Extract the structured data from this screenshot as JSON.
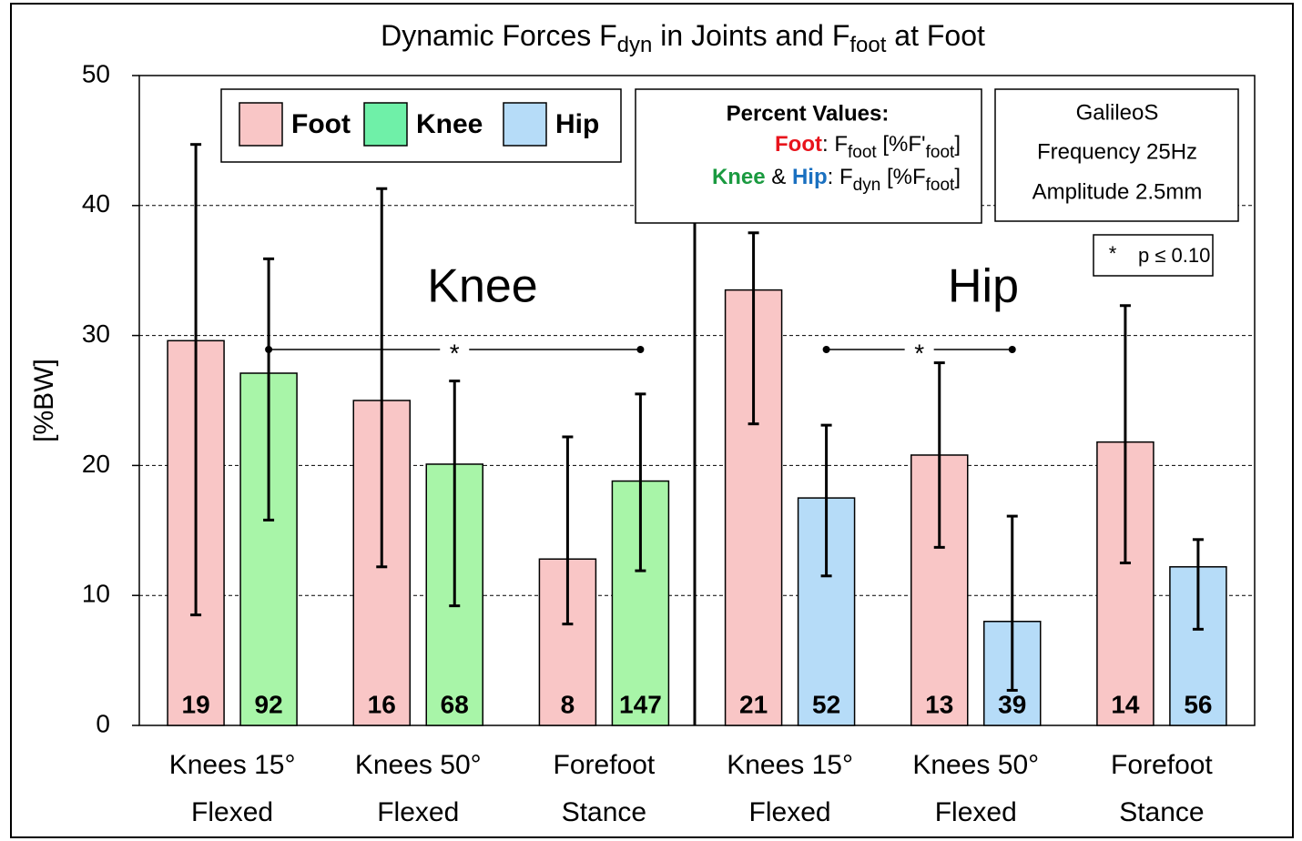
{
  "chart_data": {
    "type": "bar",
    "title": [
      "Dynamic Forces F",
      "dyn",
      " in Joints and F",
      "foot",
      " at Foot"
    ],
    "y_label": "[%BW]",
    "ylim": [
      0,
      50
    ],
    "yticks": [
      0,
      10,
      20,
      30,
      40,
      50
    ],
    "grid": true,
    "categories": [
      [
        "Knees 15°",
        "Flexed"
      ],
      [
        "Knees 50°",
        "Flexed"
      ],
      [
        "Forefoot",
        "Stance"
      ],
      [
        "Knees 15°",
        "Flexed"
      ],
      [
        "Knees 50°",
        "Flexed"
      ],
      [
        "Forefoot",
        "Stance"
      ]
    ],
    "sections": [
      "Knee",
      "Hip"
    ],
    "series": [
      {
        "name": "Foot",
        "color": "#f9c6c6",
        "label_color": "#e8141c",
        "values": [
          29.6,
          25.0,
          12.8,
          33.5,
          20.8,
          21.8
        ],
        "error_low": [
          8.5,
          12.2,
          7.8,
          23.2,
          13.7,
          12.5
        ],
        "error_high": [
          44.7,
          41.3,
          22.2,
          37.9,
          27.9,
          32.3
        ],
        "percent_labels": [
          19,
          16,
          8,
          21,
          13,
          14
        ]
      },
      {
        "name": "Knee",
        "color": "#a8f5a8",
        "legend_color": "#6ff0a8",
        "label_color": "#1a9a40",
        "values": [
          27.1,
          20.1,
          18.8,
          null,
          null,
          null
        ],
        "error_low": [
          15.8,
          9.2,
          11.9,
          null,
          null,
          null
        ],
        "error_high": [
          35.9,
          26.5,
          25.5,
          null,
          null,
          null
        ],
        "percent_labels": [
          92,
          68,
          147,
          null,
          null,
          null
        ]
      },
      {
        "name": "Hip",
        "color": "#b6dcf8",
        "legend_color": "#b6dcf8",
        "label_color": "#1a70c0",
        "values": [
          null,
          null,
          null,
          17.5,
          8.0,
          12.2
        ],
        "error_low": [
          null,
          null,
          null,
          11.5,
          2.7,
          7.4
        ],
        "error_high": [
          null,
          null,
          null,
          23.1,
          16.1,
          14.3
        ],
        "percent_labels": [
          null,
          null,
          null,
          52,
          39,
          56
        ]
      }
    ],
    "significance": [
      {
        "series": 1,
        "from": 0,
        "to": 2,
        "label": "*"
      },
      {
        "series": 2,
        "from": 3,
        "to": 4,
        "label": "*"
      }
    ],
    "percent_values": {
      "title": "Percent Values:",
      "foot_line": [
        ": F",
        "foot",
        " [%F'",
        "foot",
        "]"
      ],
      "joint_line": [
        " & ",
        ": F",
        "dyn",
        " [%F",
        "foot",
        "]"
      ]
    },
    "settings": [
      "GalileoS",
      "Frequency 25Hz",
      "Amplitude 2.5mm"
    ],
    "significance_note": [
      "*",
      "p ≤ 0.10"
    ]
  }
}
